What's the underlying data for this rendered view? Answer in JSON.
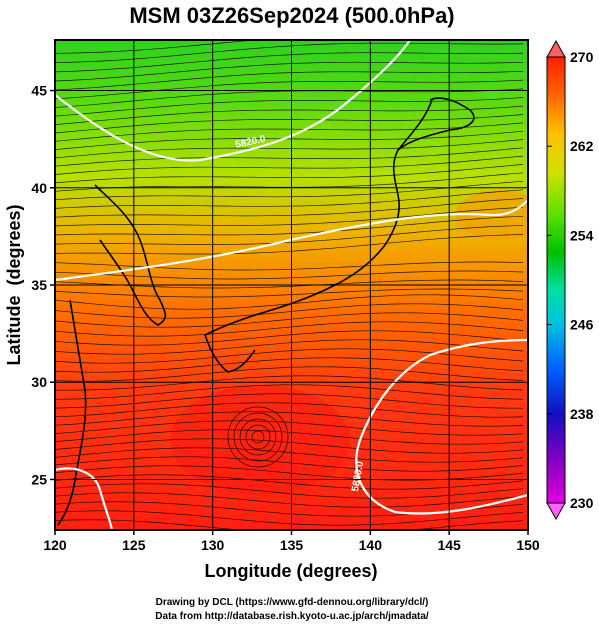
{
  "chart_data": {
    "type": "heatmap",
    "title": "MSM 03Z26Sep2024 (500.0hPa)",
    "xlabel": "Longitude (degrees)",
    "ylabel": "Latitude  (degrees)",
    "xlim": [
      120,
      150
    ],
    "ylim": [
      22.4,
      47.6
    ],
    "x_ticks": [
      "120",
      "125",
      "130",
      "135",
      "140",
      "145",
      "150"
    ],
    "x_tick_values": [
      120,
      125,
      130,
      135,
      140,
      145,
      150
    ],
    "y_ticks": [
      "25",
      "30",
      "35",
      "40",
      "45"
    ],
    "y_tick_values": [
      25,
      30,
      35,
      40,
      45
    ],
    "grid": true,
    "colorbar": {
      "ticks": [
        "270",
        "262",
        "254",
        "246",
        "238",
        "230"
      ],
      "tick_values": [
        270,
        262,
        254,
        246,
        238,
        230
      ],
      "min": 230,
      "max": 270,
      "colors": [
        "#e000e0",
        "#8000c0",
        "#1010c0",
        "#0060ff",
        "#00c0e0",
        "#00e0a0",
        "#00c000",
        "#60e000",
        "#d0e000",
        "#ffc000",
        "#ff6000",
        "#ff2000"
      ]
    },
    "contour_labels": [
      "5880.0",
      "5820.0"
    ],
    "overlay": "streamlines",
    "coastline": true
  },
  "footer": {
    "line1": "Drawing by DCL (https://www.gfd-dennou.org/library/dcl/)",
    "line2": "Data from http://database.rish.kyoto-u.ac.jp/arch/jmadata/"
  }
}
